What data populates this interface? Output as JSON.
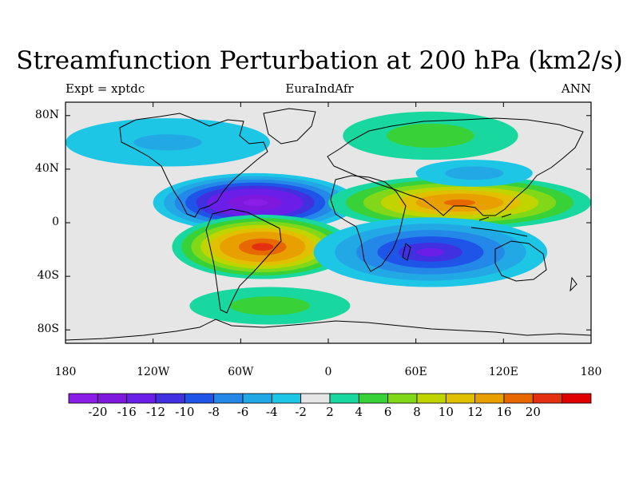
{
  "title": "Streamfunction Perturbation at 200 hPa (km2/s)",
  "subtitle_left": "Expt = xptdc",
  "subtitle_center": "EuraIndAfr",
  "subtitle_right": "ANN",
  "y_ticks": [
    {
      "lat": 80,
      "label": "80N"
    },
    {
      "lat": 40,
      "label": "40N"
    },
    {
      "lat": 0,
      "label": "0"
    },
    {
      "lat": -40,
      "label": "40S"
    },
    {
      "lat": -80,
      "label": "80S"
    }
  ],
  "x_ticks": [
    {
      "lon": -180,
      "label": "180"
    },
    {
      "lon": -120,
      "label": "120W"
    },
    {
      "lon": -60,
      "label": "60W"
    },
    {
      "lon": 0,
      "label": "0"
    },
    {
      "lon": 60,
      "label": "60E"
    },
    {
      "lon": 120,
      "label": "120E"
    },
    {
      "lon": 180,
      "label": "180"
    }
  ],
  "lat_range": [
    -90,
    90
  ],
  "lon_range": [
    -180,
    180
  ],
  "colorbar": {
    "colors": [
      "#8a1ee6",
      "#7d18dc",
      "#6a1ee8",
      "#4030e0",
      "#1f54e8",
      "#2488e8",
      "#23a8e6",
      "#1ec6e6",
      "#e6e6e6",
      "#18d8a0",
      "#38d238",
      "#80d818",
      "#c0d400",
      "#e0c000",
      "#e8a000",
      "#e86800",
      "#e43010",
      "#e00000"
    ],
    "labels": [
      "-20",
      "-16",
      "-12",
      "-10",
      "-8",
      "-6",
      "-4",
      "-2",
      "2",
      "4",
      "6",
      "8",
      "10",
      "12",
      "16",
      "20"
    ]
  },
  "chart_data": {
    "type": "heatmap",
    "title": "Streamfunction Perturbation at 200 hPa (km2/s)",
    "field": "streamfunction perturbation",
    "level": "200 hPa",
    "units": "km2/s",
    "experiment": "xptdc",
    "region": "EuraIndAfr",
    "season": "ANN",
    "features": [
      {
        "label": "minimum",
        "lon": -50,
        "lat": 15,
        "value": -20
      },
      {
        "label": "maximum",
        "lon": -45,
        "lat": -18,
        "value": 20
      },
      {
        "label": "maximum",
        "lon": 90,
        "lat": 15,
        "value": 16
      },
      {
        "label": "minimum",
        "lon": 70,
        "lat": -22,
        "value": -12
      },
      {
        "label": "positive",
        "lon": 70,
        "lat": 65,
        "value": 5
      },
      {
        "label": "negative",
        "lon": -110,
        "lat": 60,
        "value": -4
      },
      {
        "label": "negative",
        "lon": 100,
        "lat": 37,
        "value": -5
      },
      {
        "label": "positive",
        "lon": -40,
        "lat": -62,
        "value": 5
      }
    ]
  }
}
